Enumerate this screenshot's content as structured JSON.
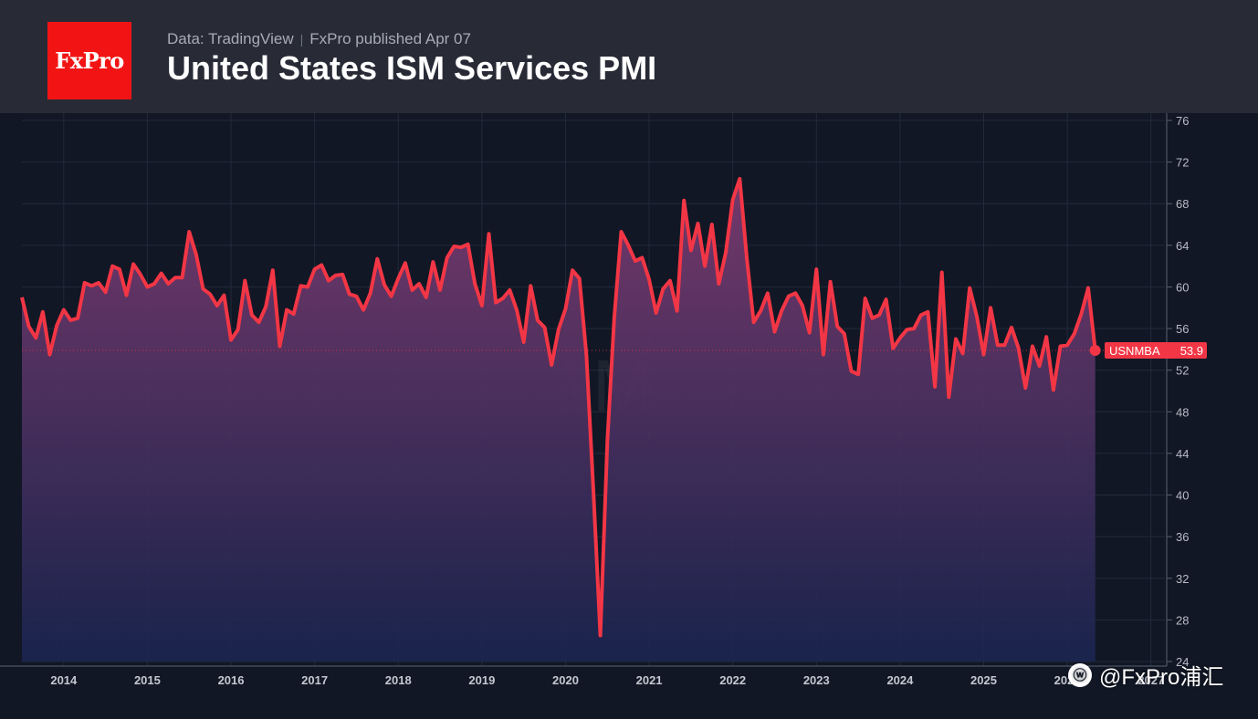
{
  "header": {
    "logo_text": "FxPro",
    "source": "Data: TradingView",
    "published": "FxPro published Apr 07",
    "title": "United States ISM Services PMI"
  },
  "watermark": {
    "icon": "weibo-icon",
    "text": "@FxPro浦汇"
  },
  "colors": {
    "line": "#f23645",
    "fill_top": "#7a3a6e",
    "fill_bottom": "#1a2550",
    "background": "#111725",
    "header": "#282b36",
    "logo": "#f21414"
  },
  "chart_data": {
    "type": "area",
    "title": "United States ISM Services PMI",
    "interval_label": "1M",
    "x_start": "2013-07",
    "x_end": "2027-03",
    "ylim": [
      24,
      76
    ],
    "y_ticks": [
      24,
      28,
      32,
      36,
      40,
      44,
      48,
      52,
      56,
      60,
      64,
      68,
      72,
      76
    ],
    "x_ticks": [
      "2014",
      "2015",
      "2016",
      "2017",
      "2018",
      "2019",
      "2020",
      "2021",
      "2022",
      "2023",
      "2024",
      "2025",
      "2026",
      "2027"
    ],
    "grid": true,
    "series": [
      {
        "name": "USNMBA",
        "last_value": "53.9",
        "start": "2013-07",
        "values": [
          59.0,
          56.2,
          55.1,
          57.6,
          53.5,
          56.3,
          57.8,
          56.8,
          57.0,
          60.4,
          60.1,
          60.4,
          59.5,
          62.0,
          61.7,
          59.2,
          62.2,
          61.2,
          60.0,
          60.3,
          61.3,
          60.3,
          60.9,
          60.9,
          65.3,
          63.1,
          59.8,
          59.3,
          58.2,
          59.2,
          54.9,
          55.9,
          60.6,
          57.3,
          56.6,
          58.1,
          61.6,
          54.3,
          57.8,
          57.4,
          60.1,
          60.0,
          61.7,
          62.1,
          60.6,
          61.1,
          61.2,
          59.3,
          59.1,
          57.8,
          59.4,
          62.7,
          60.2,
          59.1,
          60.8,
          62.3,
          59.7,
          60.3,
          59.0,
          62.4,
          59.7,
          62.8,
          63.9,
          63.8,
          64.1,
          60.3,
          58.2,
          65.1,
          58.5,
          58.9,
          59.7,
          57.8,
          54.7,
          60.1,
          56.8,
          56.1,
          52.5,
          55.9,
          57.9,
          61.6,
          60.8,
          53.4,
          40.4,
          26.5,
          45.2,
          57.1,
          65.3,
          64.0,
          62.5,
          62.8,
          60.7,
          57.5,
          59.8,
          60.6,
          57.7,
          68.3,
          63.5,
          66.1,
          62.0,
          66.0,
          60.3,
          63.3,
          68.4,
          70.4,
          62.8,
          56.6,
          57.7,
          59.4,
          55.7,
          57.7,
          59.1,
          59.4,
          58.2,
          55.6,
          61.7,
          53.5,
          60.5,
          56.2,
          55.5,
          51.9,
          51.6,
          58.9,
          57.0,
          57.3,
          58.8,
          54.1,
          55.1,
          55.9,
          56.0,
          57.3,
          57.6,
          50.4,
          61.4,
          49.4,
          55.0,
          53.6,
          59.9,
          57.2,
          53.5,
          58.0,
          54.4,
          54.4,
          56.1,
          54.1,
          50.3,
          54.3,
          52.4,
          55.2,
          50.1,
          54.3,
          54.4,
          55.5,
          57.4,
          59.9,
          53.9
        ]
      }
    ]
  }
}
